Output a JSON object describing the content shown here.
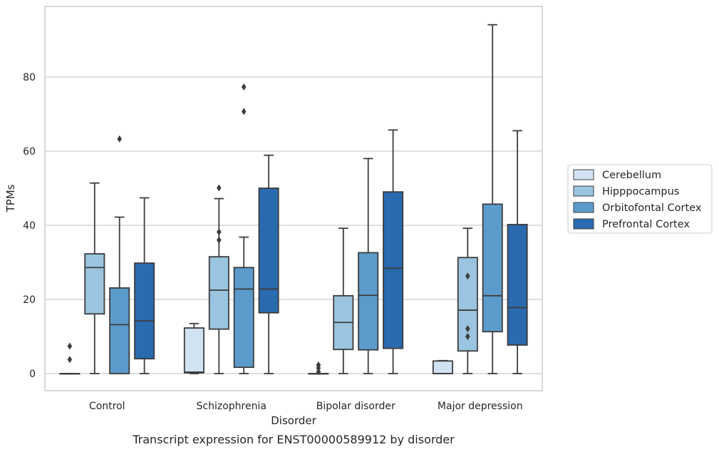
{
  "chart_data": {
    "type": "box",
    "caption": "Transcript expression for ENST00000589912 by disorder",
    "xlabel": "Disorder",
    "ylabel": "TPMs",
    "ylim": [
      -4.5,
      99
    ],
    "yticks": [
      0,
      20,
      40,
      60,
      80
    ],
    "grid": "horizontal",
    "legend_position": "right",
    "categories": [
      "Control",
      "Schizophrenia",
      "Bipolar disorder",
      "Major depression"
    ],
    "series": [
      {
        "name": "Cerebellum",
        "color": "#d1e2f2",
        "boxes": [
          {
            "whislo": 0,
            "q1": 0,
            "med": 0,
            "q3": 0,
            "whishi": 0,
            "fliers": [
              3.8,
              7.4
            ]
          },
          {
            "whislo": 0,
            "q1": 0.2,
            "med": 0.4,
            "q3": 12.3,
            "whishi": 13.5,
            "fliers": []
          },
          {
            "whislo": 0,
            "q1": 0,
            "med": 0,
            "q3": 0,
            "whishi": 0,
            "fliers": [
              0.5,
              1.5,
              2.3
            ]
          },
          {
            "whislo": 0,
            "q1": 0,
            "med": 0,
            "q3": 3.4,
            "whishi": 3.5,
            "fliers": []
          }
        ]
      },
      {
        "name": "Hipppocampus",
        "color": "#9ac4df",
        "boxes": [
          {
            "whislo": 0,
            "q1": 16.1,
            "med": 28.6,
            "q3": 32.3,
            "whishi": 51.4,
            "fliers": []
          },
          {
            "whislo": 0,
            "q1": 12.0,
            "med": 22.5,
            "q3": 31.5,
            "whishi": 47.2,
            "fliers": [
              36.0,
              38.2,
              50.1
            ]
          },
          {
            "whislo": 0,
            "q1": 6.5,
            "med": 13.8,
            "q3": 21.0,
            "whishi": 39.2,
            "fliers": []
          },
          {
            "whislo": 0,
            "q1": 6.1,
            "med": 17.1,
            "q3": 31.3,
            "whishi": 39.2,
            "fliers": [
              10.0,
              12.1,
              26.3
            ]
          }
        ]
      },
      {
        "name": "Orbitofontal Cortex",
        "color": "#5b9bcb",
        "boxes": [
          {
            "whislo": 0,
            "q1": 0,
            "med": 13.2,
            "q3": 23.1,
            "whishi": 42.2,
            "fliers": [
              63.3
            ]
          },
          {
            "whislo": 0,
            "q1": 1.7,
            "med": 22.8,
            "q3": 28.6,
            "whishi": 36.8,
            "fliers": [
              70.7,
              77.3
            ]
          },
          {
            "whislo": 0,
            "q1": 6.4,
            "med": 21.1,
            "q3": 32.6,
            "whishi": 58.0,
            "fliers": []
          },
          {
            "whislo": 0,
            "q1": 11.3,
            "med": 21.0,
            "q3": 45.7,
            "whishi": 94.1,
            "fliers": []
          }
        ]
      },
      {
        "name": "Prefrontal Cortex",
        "color": "#2a6aae",
        "boxes": [
          {
            "whislo": 0,
            "q1": 4.0,
            "med": 14.2,
            "q3": 29.8,
            "whishi": 47.4,
            "fliers": []
          },
          {
            "whislo": 0,
            "q1": 16.4,
            "med": 22.8,
            "q3": 50.0,
            "whishi": 58.9,
            "fliers": []
          },
          {
            "whislo": 0,
            "q1": 6.8,
            "med": 28.4,
            "q3": 49.0,
            "whishi": 65.7,
            "fliers": []
          },
          {
            "whislo": 0,
            "q1": 7.7,
            "med": 17.8,
            "q3": 40.2,
            "whishi": 65.5,
            "fliers": []
          }
        ]
      }
    ]
  }
}
